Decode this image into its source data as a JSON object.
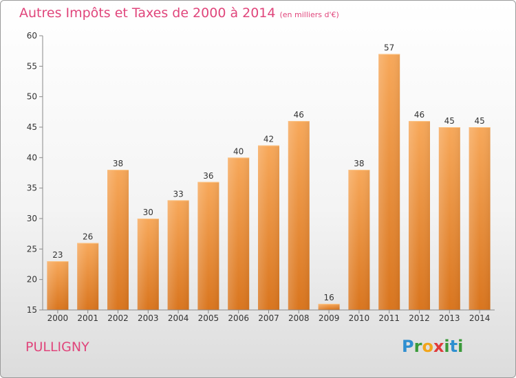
{
  "title": "Autres Impôts et Taxes de 2000 à 2014",
  "subtitle": "(en milliers d'€)",
  "commune": "PULLIGNY",
  "logo": "Proxiti",
  "colors": {
    "bar_light": "#f7a85a",
    "bar_dark": "#d9751e",
    "title": "#e0457b"
  },
  "chart_data": {
    "type": "bar",
    "categories": [
      "2000",
      "2001",
      "2002",
      "2003",
      "2004",
      "2005",
      "2006",
      "2007",
      "2008",
      "2009",
      "2010",
      "2011",
      "2012",
      "2013",
      "2014"
    ],
    "values": [
      23,
      26,
      38,
      30,
      33,
      36,
      40,
      42,
      46,
      16,
      38,
      57,
      46,
      45,
      45
    ],
    "ylim": [
      15,
      60
    ],
    "yticks": [
      15,
      20,
      25,
      30,
      35,
      40,
      45,
      50,
      55,
      60
    ],
    "grid": false,
    "legend": "none"
  }
}
